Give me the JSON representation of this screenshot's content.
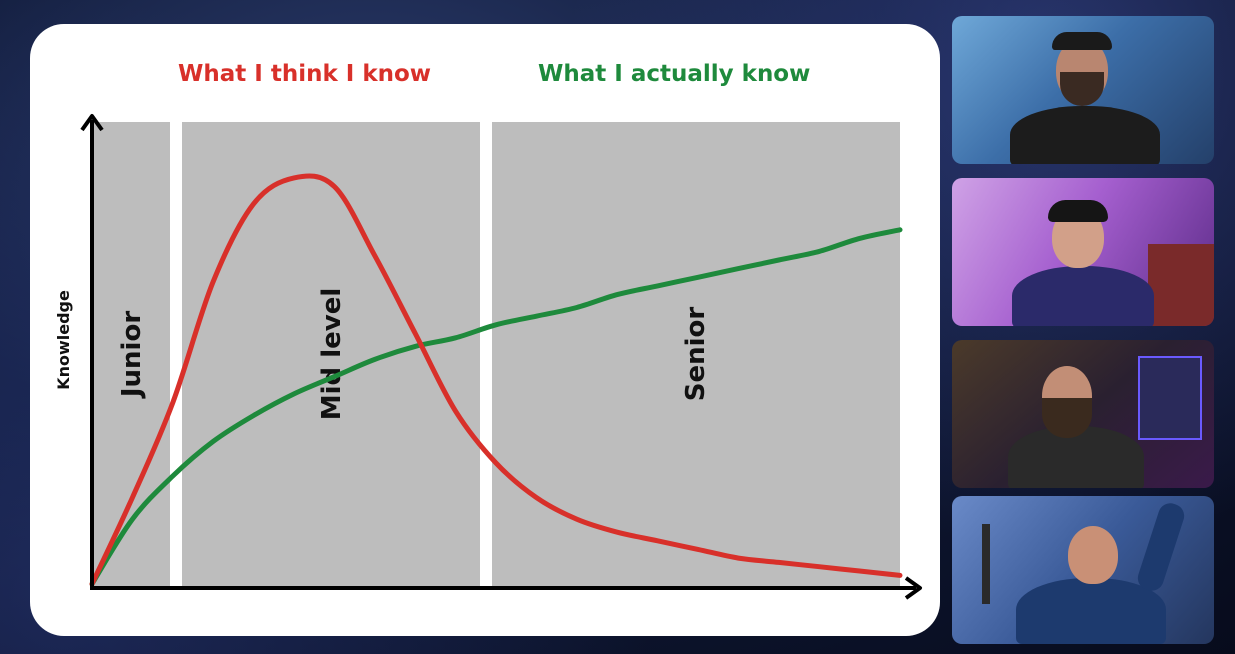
{
  "slide": {
    "legend_think": "What I think I know",
    "legend_actual": "What I actually know",
    "ylabel": "Knowledge",
    "zones": [
      "Junior",
      "Mid level",
      "Senior"
    ]
  },
  "chart_data": {
    "type": "line",
    "title": "",
    "xlabel": "",
    "ylabel": "Knowledge",
    "zones": [
      "Junior",
      "Mid level",
      "Senior"
    ],
    "series": [
      {
        "name": "What I think I know",
        "color": "#d8302a",
        "x": [
          0,
          0.05,
          0.1,
          0.15,
          0.2,
          0.25,
          0.3,
          0.35,
          0.4,
          0.45,
          0.5,
          0.55,
          0.6,
          0.65,
          0.7,
          0.75,
          0.8,
          0.85,
          0.9,
          0.95,
          1.0
        ],
        "values": [
          0,
          0.2,
          0.42,
          0.7,
          0.88,
          0.94,
          0.92,
          0.76,
          0.58,
          0.4,
          0.28,
          0.2,
          0.15,
          0.12,
          0.1,
          0.08,
          0.06,
          0.05,
          0.04,
          0.03,
          0.02
        ]
      },
      {
        "name": "What I actually know",
        "color": "#1e8a3c",
        "x": [
          0,
          0.05,
          0.1,
          0.15,
          0.2,
          0.25,
          0.3,
          0.35,
          0.4,
          0.45,
          0.5,
          0.55,
          0.6,
          0.65,
          0.7,
          0.75,
          0.8,
          0.85,
          0.9,
          0.95,
          1.0
        ],
        "values": [
          0,
          0.15,
          0.25,
          0.33,
          0.39,
          0.44,
          0.48,
          0.52,
          0.55,
          0.57,
          0.6,
          0.62,
          0.64,
          0.67,
          0.69,
          0.71,
          0.73,
          0.75,
          0.77,
          0.8,
          0.82
        ]
      }
    ]
  },
  "colors": {
    "think": "#d8302a",
    "actual": "#1e8a3c",
    "zone": "#bdbdbd"
  },
  "participants": [
    {
      "name": "participant-1-video"
    },
    {
      "name": "participant-2-video"
    },
    {
      "name": "participant-3-video"
    },
    {
      "name": "participant-4-video"
    }
  ]
}
